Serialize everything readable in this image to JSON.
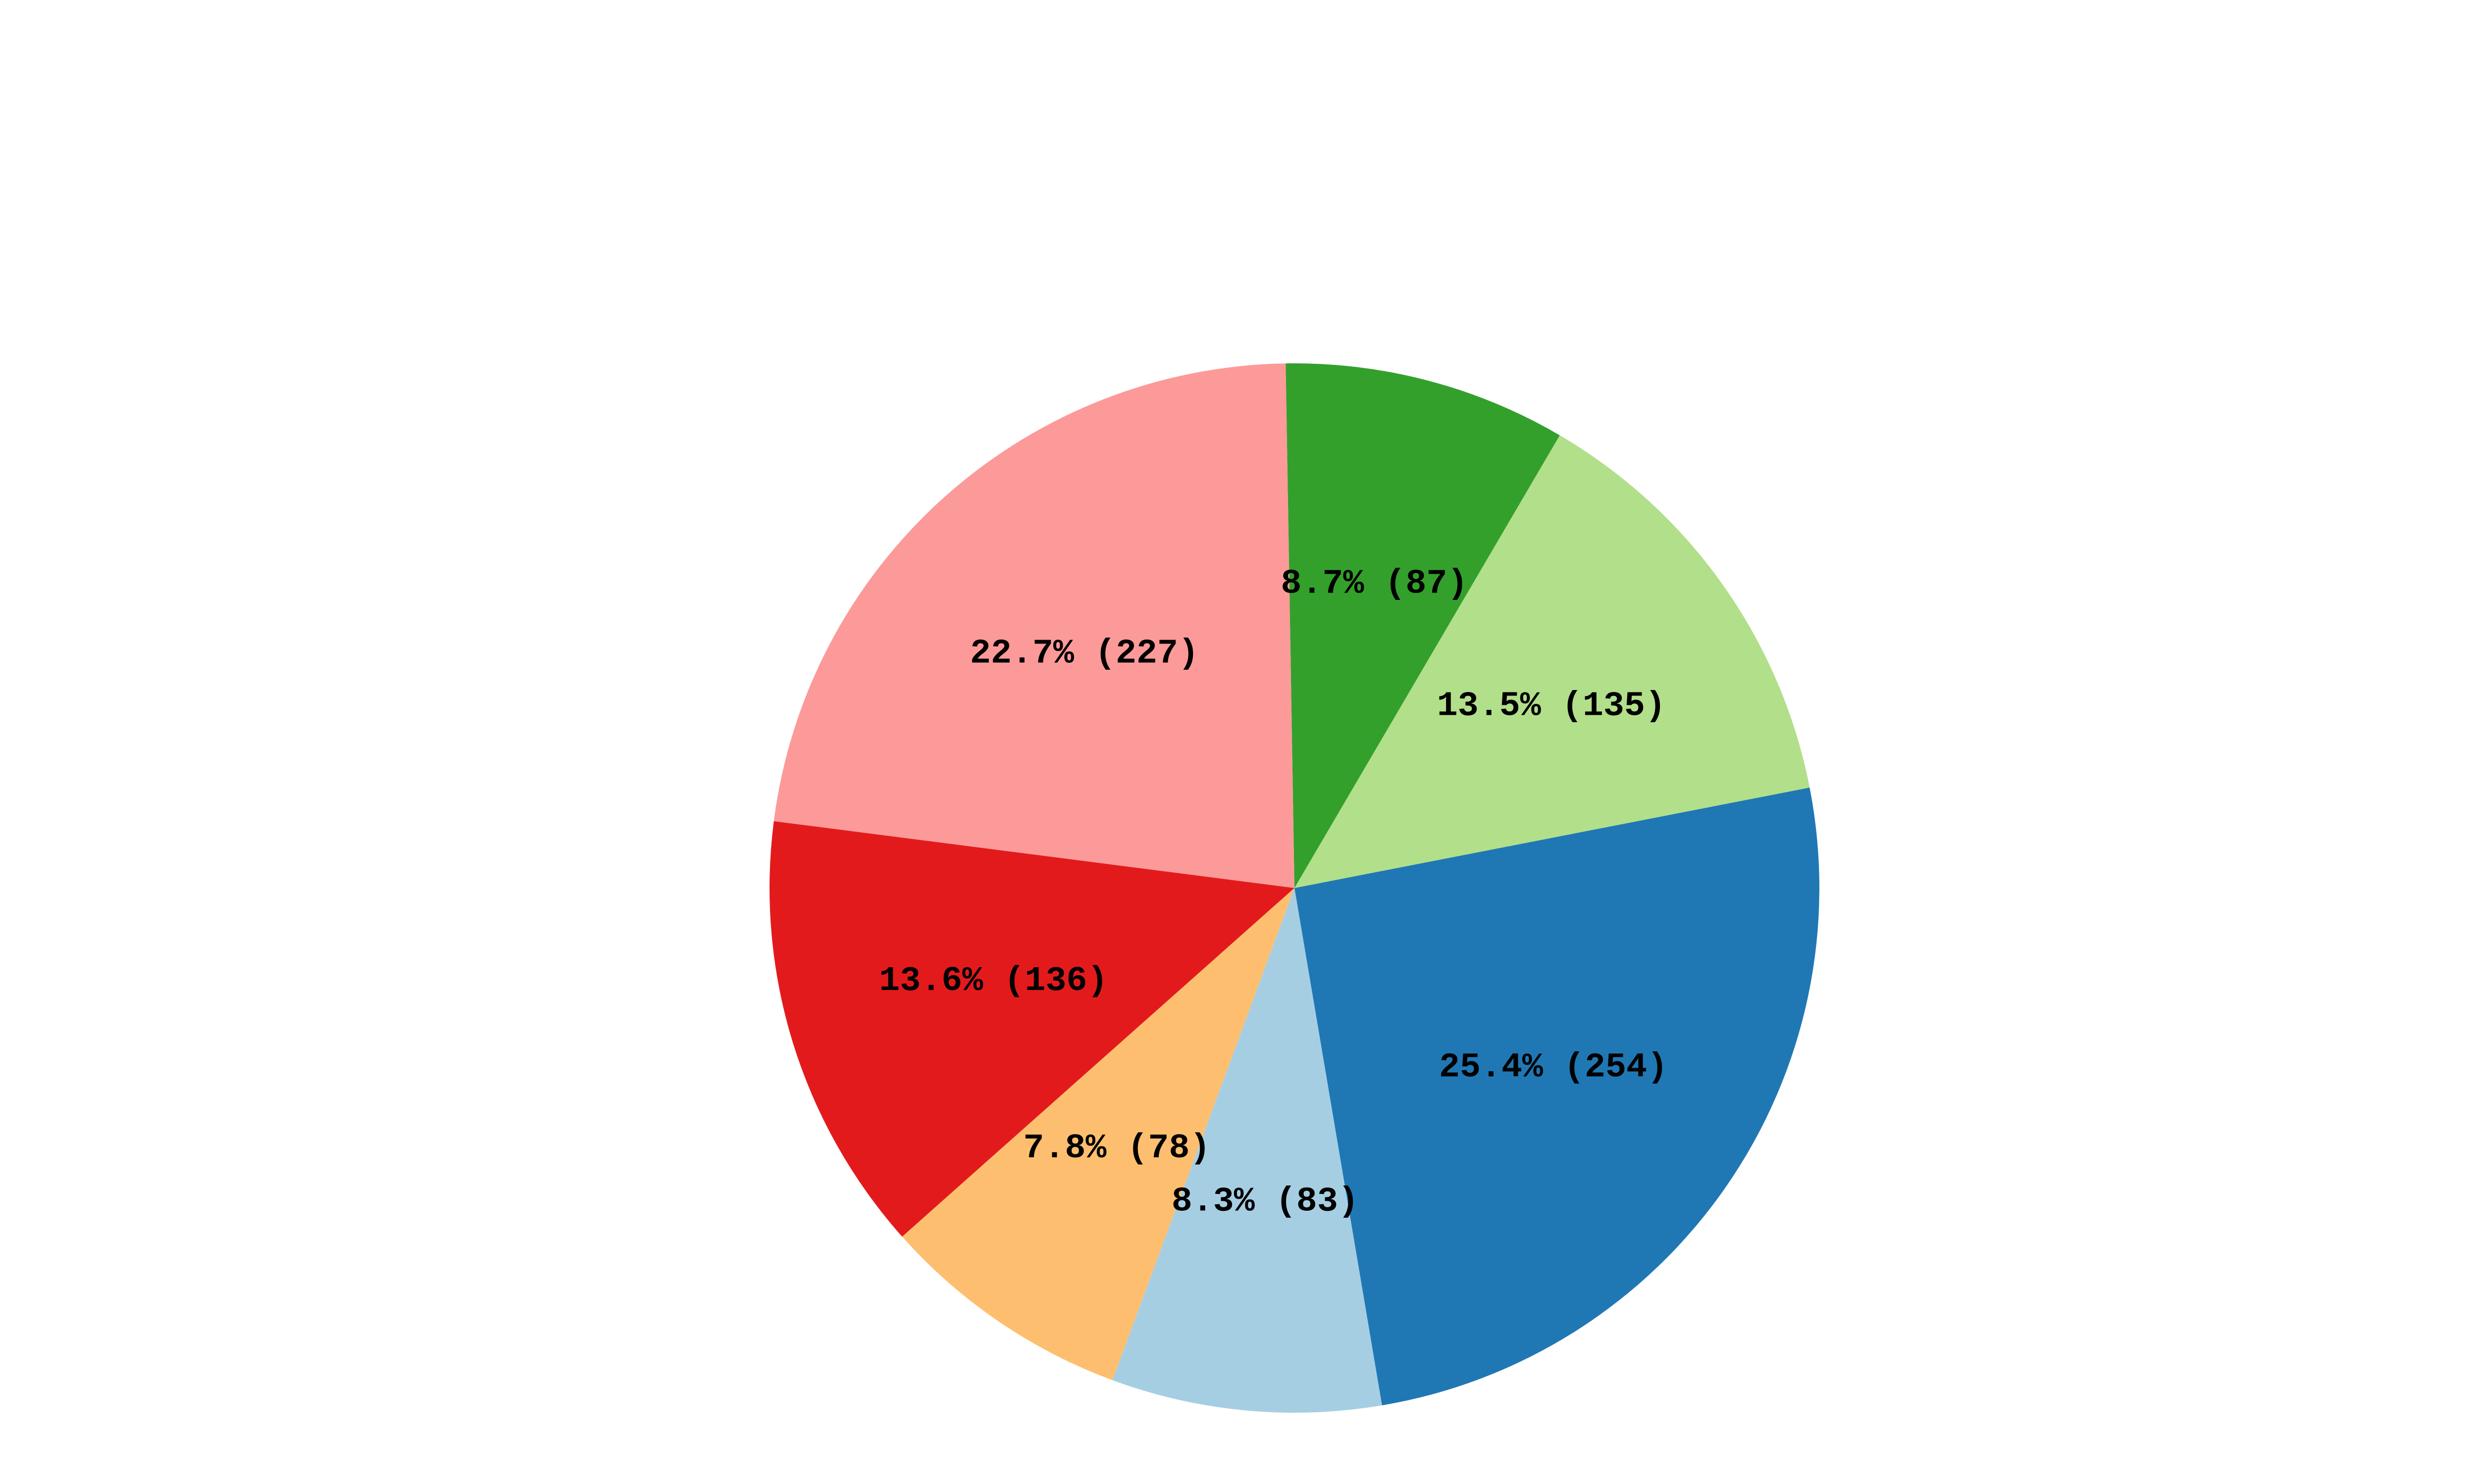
{
  "chart_data": {
    "type": "pie",
    "values": [
      254,
      135,
      87,
      227,
      136,
      78,
      83
    ],
    "value_labels": [
      "25.4% (254)",
      "13.5% (135)",
      "8.7% (87)",
      "22.7% (227)",
      "13.6% (136)",
      "7.8% (78)",
      "8.3% (83)"
    ],
    "colors": [
      "#1f78b4",
      "#b2df8a",
      "#33a02c",
      "#fb9a99",
      "#e31a1c",
      "#fdbf6f",
      "#a6cee3"
    ]
  }
}
